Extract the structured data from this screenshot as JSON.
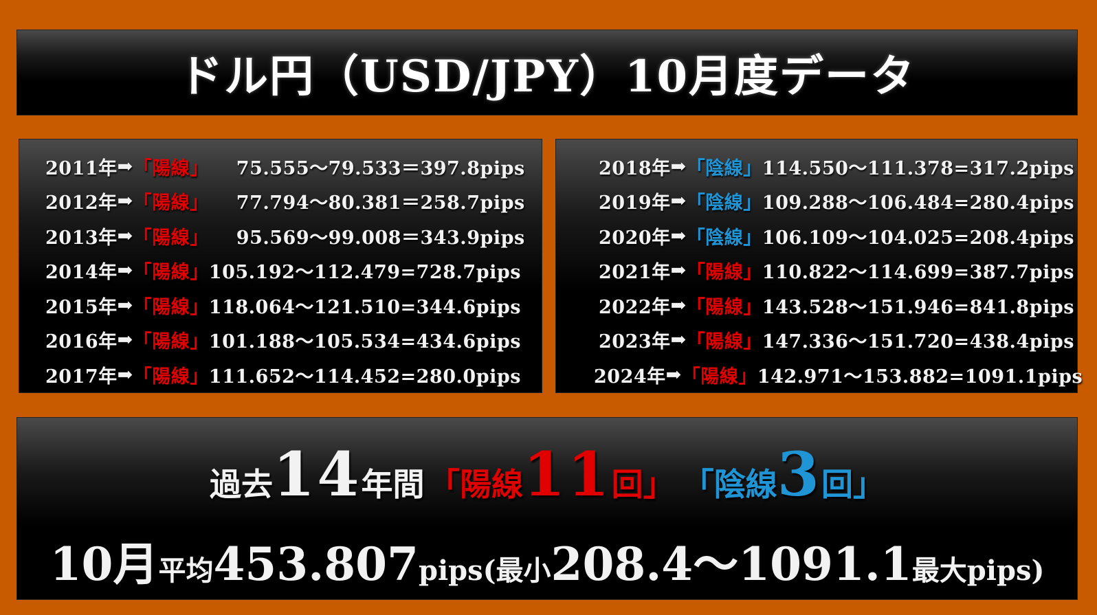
{
  "title": "ドル円（USD/JPY）10月度データ",
  "colors": {
    "background": "#c85a00",
    "bullish": "#e10000",
    "bearish": "#1f95d6"
  },
  "arrow": "➡",
  "left_rows": [
    {
      "year": "2011年",
      "candle": "「陽線」",
      "type": "bull",
      "range": "75.555〜79.533＝397.8pips"
    },
    {
      "year": "2012年",
      "candle": "「陽線」",
      "type": "bull",
      "range": "77.794〜80.381＝258.7pips"
    },
    {
      "year": "2013年",
      "candle": "「陽線」",
      "type": "bull",
      "range": "95.569〜99.008＝343.9pips"
    },
    {
      "year": "2014年",
      "candle": "「陽線」",
      "type": "bull",
      "range": "105.192〜112.479=728.7pips"
    },
    {
      "year": "2015年",
      "candle": "「陽線」",
      "type": "bull",
      "range": "118.064〜121.510=344.6pips"
    },
    {
      "year": "2016年",
      "candle": "「陽線」",
      "type": "bull",
      "range": "101.188〜105.534=434.6pips"
    },
    {
      "year": "2017年",
      "candle": "「陽線」",
      "type": "bull",
      "range": "111.652〜114.452=280.0pips"
    }
  ],
  "right_rows": [
    {
      "year": "2018年",
      "candle": "「陰線」",
      "type": "bear",
      "range": "114.550〜111.378=317.2pips"
    },
    {
      "year": "2019年",
      "candle": "「陰線」",
      "type": "bear",
      "range": "109.288〜106.484=280.4pips"
    },
    {
      "year": "2020年",
      "candle": "「陰線」",
      "type": "bear",
      "range": "106.109〜104.025=208.4pips"
    },
    {
      "year": "2021年",
      "candle": "「陽線」",
      "type": "bull",
      "range": "110.822〜114.699=387.7pips"
    },
    {
      "year": "2022年",
      "candle": "「陽線」",
      "type": "bull",
      "range": "143.528〜151.946=841.8pips"
    },
    {
      "year": "2023年",
      "candle": "「陽線」",
      "type": "bull",
      "range": "147.336〜151.720=438.4pips"
    },
    {
      "year": "2024年",
      "candle": "「陽線」",
      "type": "bull",
      "range": "142.971〜153.882=1091.1pips"
    }
  ],
  "summary": {
    "past": "過去",
    "years_num": "14",
    "years_unit": "年間",
    "bull_open": "「陽線",
    "bull_num": "11",
    "bull_close": "回」",
    "bear_open": "「陰線",
    "bear_num": "3",
    "bear_close": "回」",
    "month": "10月",
    "avg_label": "平均",
    "avg_value": "453.807",
    "pips_open": "pips(最小",
    "range_value": "208.4〜1091.1",
    "range_close": "最大pips)"
  }
}
